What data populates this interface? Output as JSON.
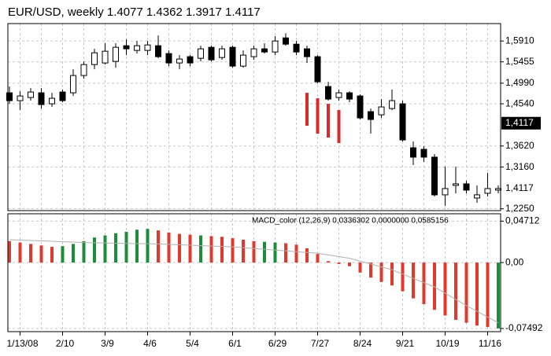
{
  "chart_data": [
    {
      "type": "candlestick",
      "title": "EUR/USD,  weekly  1.4077  1.4362  1.3917  1.4117",
      "categories": [
        null,
        "1/13/08",
        null,
        null,
        null,
        "2/10",
        null,
        null,
        null,
        "3/9",
        null,
        null,
        null,
        "4/6",
        null,
        null,
        null,
        "5/4",
        null,
        null,
        null,
        "6/1",
        null,
        null,
        null,
        "6/29",
        null,
        null,
        null,
        "7/27",
        null,
        null,
        null,
        "8/24",
        null,
        null,
        null,
        "9/21",
        null,
        null,
        null,
        "10/19",
        null,
        null,
        null,
        "11/16",
        null
      ],
      "open": [
        1.478,
        1.4609,
        1.4677,
        1.478,
        1.454,
        1.4797,
        1.478,
        1.5157,
        1.5396,
        1.5431,
        1.5465,
        1.5807,
        1.5705,
        1.5705,
        1.5807,
        1.5636,
        1.5431,
        1.5568,
        1.5533,
        1.5773,
        1.555,
        1.5773,
        1.5362,
        1.5568,
        1.5739,
        1.567,
        1.5978,
        1.5841,
        1.5739,
        1.5568,
        1.4917,
        1.4677,
        1.478,
        1.4711,
        1.4369,
        1.43,
        1.4437,
        1.454,
        1.3581,
        1.3547,
        1.3376,
        1.2554,
        1.276,
        1.2794,
        1.2485,
        1.2588,
        1.2657
      ],
      "high": [
        1.4917,
        1.4814,
        1.4883,
        1.4883,
        1.478,
        1.4849,
        1.5293,
        1.5465,
        1.5739,
        1.5859,
        1.5859,
        1.5944,
        1.591,
        1.591,
        1.603,
        1.5705,
        1.5602,
        1.5602,
        1.5807,
        1.5807,
        1.5807,
        1.5807,
        1.5705,
        1.5807,
        1.5859,
        1.6013,
        1.6081,
        1.591,
        1.5807,
        1.5602,
        1.502,
        1.4849,
        1.4814,
        1.4746,
        1.4437,
        1.4643,
        1.4849,
        1.4609,
        1.3718,
        1.3615,
        1.3444,
        1.317,
        1.317,
        1.2862,
        1.276,
        1.3033,
        1.276
      ],
      "low": [
        1.454,
        1.4403,
        1.4609,
        1.4437,
        1.4472,
        1.4574,
        1.4711,
        1.5088,
        1.5293,
        1.5396,
        1.5328,
        1.5602,
        1.5636,
        1.5602,
        1.5533,
        1.5362,
        1.5293,
        1.5362,
        1.5465,
        1.5465,
        1.5499,
        1.5328,
        1.5328,
        1.5499,
        1.5636,
        1.5602,
        1.5807,
        1.5602,
        1.5431,
        1.4985,
        1.4609,
        1.4609,
        1.4574,
        1.4198,
        1.3889,
        1.4232,
        1.4403,
        1.3718,
        1.3204,
        1.3273,
        1.2519,
        1.2314,
        1.2588,
        1.2588,
        1.2382,
        1.2519,
        1.2588
      ],
      "close": [
        1.4609,
        1.4711,
        1.4797,
        1.4523,
        1.466,
        1.4609,
        1.5157,
        1.5396,
        1.5653,
        1.5687,
        1.5773,
        1.5739,
        1.5807,
        1.5824,
        1.5568,
        1.5431,
        1.5516,
        1.5431,
        1.5739,
        1.5499,
        1.5739,
        1.5362,
        1.5602,
        1.5739,
        1.567,
        1.591,
        1.5841,
        1.567,
        1.5568,
        1.502,
        1.4643,
        1.478,
        1.4643,
        1.4232,
        1.4198,
        1.4472,
        1.4609,
        1.3752,
        1.3376,
        1.3376,
        1.2554,
        1.2691,
        1.2794,
        1.2657,
        1.2554,
        1.2691,
        1.2691
      ],
      "up_color": "#ffffff",
      "down_color": "#000000",
      "overlay": {
        "color": "#d92b2b",
        "highs": [
          null,
          null,
          null,
          null,
          null,
          null,
          null,
          null,
          null,
          null,
          null,
          null,
          null,
          null,
          null,
          null,
          null,
          null,
          null,
          null,
          null,
          null,
          null,
          null,
          null,
          null,
          null,
          null,
          1.478,
          1.466,
          1.454,
          1.4403,
          null,
          null,
          null,
          null,
          null,
          null,
          null,
          null,
          null,
          null,
          null,
          null,
          null,
          null,
          null
        ],
        "lows": [
          null,
          null,
          null,
          null,
          null,
          null,
          null,
          null,
          null,
          null,
          null,
          null,
          null,
          null,
          null,
          null,
          null,
          null,
          null,
          null,
          null,
          null,
          null,
          null,
          null,
          null,
          null,
          null,
          1.4061,
          1.3889,
          1.3804,
          1.3684,
          null,
          null,
          null,
          null,
          null,
          null,
          null,
          null,
          null,
          null,
          null,
          null,
          null,
          null,
          null
        ]
      },
      "ylim": [
        1.221,
        1.629
      ],
      "yticks": [
        {
          "value": 1.591,
          "label": "1,5910"
        },
        {
          "value": 1.5455,
          "label": "1,5455"
        },
        {
          "value": 1.499,
          "label": "1,4990"
        },
        {
          "value": 1.454,
          "label": "1,4540"
        },
        {
          "value": 1.362,
          "label": "1,3620"
        },
        {
          "value": 1.316,
          "label": "1,3160"
        },
        {
          "value": 1.225,
          "label": "1,2250"
        }
      ],
      "last_price": {
        "value": 1.4117,
        "label": "1,4117"
      },
      "price_tag_label": "1,4117",
      "grid": true
    },
    {
      "type": "macd",
      "title": "MACD_color (12,26,9) 0,0336302  0,0000000  0,0585156",
      "values": [
        0.0244,
        0.0228,
        0.0212,
        0.0195,
        0.0179,
        0.0187,
        0.0212,
        0.0244,
        0.0285,
        0.0309,
        0.0334,
        0.035,
        0.0374,
        0.0383,
        0.0366,
        0.0342,
        0.0326,
        0.0317,
        0.0309,
        0.0301,
        0.0293,
        0.0277,
        0.026,
        0.0244,
        0.0236,
        0.0228,
        0.022,
        0.0204,
        0.0163,
        0.0098,
        0.0016,
        -0.0016,
        -0.0041,
        -0.0114,
        -0.0171,
        -0.022,
        -0.026,
        -0.0326,
        -0.0407,
        -0.0472,
        -0.0537,
        -0.0602,
        -0.0651,
        -0.0684,
        -0.0716,
        -0.0733,
        -0.0749
      ],
      "colors": [
        "#e03a2e",
        "#e03a2e",
        "#e03a2e",
        "#e03a2e",
        "#e03a2e",
        "#1e8c3a",
        "#1e8c3a",
        "#1e8c3a",
        "#1e8c3a",
        "#1e8c3a",
        "#1e8c3a",
        "#1e8c3a",
        "#1e8c3a",
        "#1e8c3a",
        "#e03a2e",
        "#e03a2e",
        "#e03a2e",
        "#e03a2e",
        "#1e8c3a",
        "#e03a2e",
        "#e03a2e",
        "#e03a2e",
        "#e03a2e",
        "#e03a2e",
        "#1e8c3a",
        "#1e8c3a",
        "#e03a2e",
        "#e03a2e",
        "#e03a2e",
        "#e03a2e",
        "#e03a2e",
        "#e03a2e",
        "#e03a2e",
        "#e03a2e",
        "#e03a2e",
        "#e03a2e",
        "#e03a2e",
        "#e03a2e",
        "#e03a2e",
        "#e03a2e",
        "#e03a2e",
        "#e03a2e",
        "#e03a2e",
        "#e03a2e",
        "#e03a2e",
        "#e03a2e",
        "#1e8c3a"
      ],
      "signal": {
        "color": "#b0b0b0",
        "values": [
          0.026,
          0.0256,
          0.0251,
          0.0247,
          0.0242,
          0.0237,
          0.0233,
          0.0228,
          0.0225,
          0.0223,
          0.022,
          0.0218,
          0.0216,
          0.0214,
          0.0212,
          0.0207,
          0.0202,
          0.0198,
          0.0193,
          0.0188,
          0.0184,
          0.0179,
          0.017,
          0.016,
          0.0151,
          0.0142,
          0.0133,
          0.0124,
          0.0115,
          0.0106,
          0.0087,
          0.0068,
          0.0049,
          0.0016,
          -0.0016,
          -0.0049,
          -0.0081,
          -0.013,
          -0.0179,
          -0.0228,
          -0.0277,
          -0.0348,
          -0.0418,
          -0.0488,
          -0.0553,
          -0.0619,
          -0.0684
        ]
      },
      "ylim": [
        -0.0785,
        0.0555
      ],
      "yticks": [
        {
          "value": 0.04712,
          "label": "0,04712"
        },
        {
          "value": 0,
          "label": "0,00"
        },
        {
          "value": -0.07492,
          "label": "-0,07492"
        }
      ],
      "grid": true
    }
  ]
}
